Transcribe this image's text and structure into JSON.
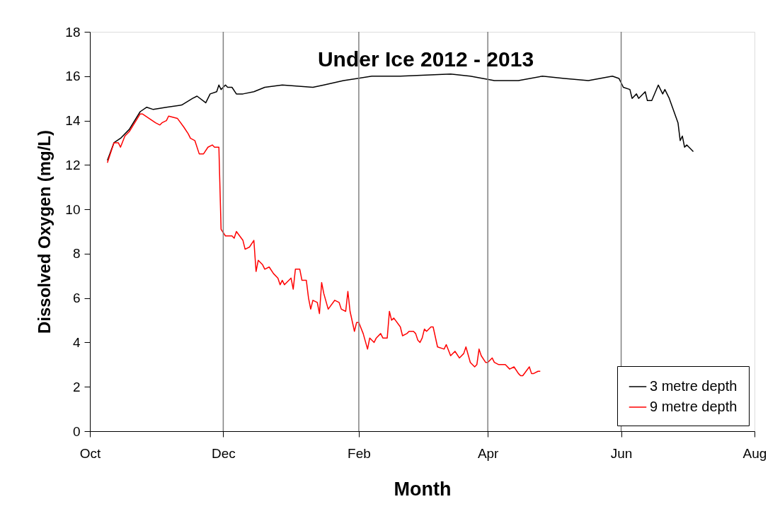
{
  "chart_data": {
    "type": "line",
    "title": "Under Ice 2012 - 2013",
    "xlabel": "Month",
    "ylabel": "Dissolved Oxygen (mg/L)",
    "xlim": [
      "2012-10-01",
      "2013-08-01"
    ],
    "xticks": [
      {
        "value": "2012-10-01",
        "label": "Oct"
      },
      {
        "value": "2012-12-01",
        "label": "Dec"
      },
      {
        "value": "2013-02-01",
        "label": "Feb"
      },
      {
        "value": "2013-04-01",
        "label": "Apr"
      },
      {
        "value": "2013-06-01",
        "label": "Jun"
      },
      {
        "value": "2013-08-01",
        "label": "Aug"
      }
    ],
    "ylim": [
      0,
      18
    ],
    "yticks": [
      0,
      2,
      4,
      6,
      8,
      10,
      12,
      14,
      16,
      18
    ],
    "grid": "x",
    "legend": "bottom right",
    "line_style": "solid",
    "marker": "none",
    "series": [
      {
        "name": "3 metre depth",
        "color": "#000000",
        "x": [
          "2012-10-09",
          "2012-10-12",
          "2012-10-15",
          "2012-10-19",
          "2012-10-24",
          "2012-10-27",
          "2012-10-30",
          "2012-11-05",
          "2012-11-12",
          "2012-11-17",
          "2012-11-19",
          "2012-11-23",
          "2012-11-25",
          "2012-11-28",
          "2012-11-29",
          "2012-11-30",
          "2012-12-02",
          "2012-12-03",
          "2012-12-05",
          "2012-12-07",
          "2012-12-10",
          "2012-12-15",
          "2012-12-20",
          "2012-12-28",
          "2013-01-11",
          "2013-01-16",
          "2013-01-25",
          "2013-02-07",
          "2013-02-20",
          "2013-03-15",
          "2013-03-24",
          "2013-04-04",
          "2013-04-15",
          "2013-04-26",
          "2013-05-06",
          "2013-05-17",
          "2013-05-28",
          "2013-05-31",
          "2013-06-02",
          "2013-06-05",
          "2013-06-06",
          "2013-06-08",
          "2013-06-09",
          "2013-06-12",
          "2013-06-13",
          "2013-06-15",
          "2013-06-18",
          "2013-06-20",
          "2013-06-21",
          "2013-06-23",
          "2013-06-27",
          "2013-06-28",
          "2013-06-29",
          "2013-06-30",
          "2013-07-01",
          "2013-07-04"
        ],
        "values": [
          12.2,
          13.0,
          13.2,
          13.6,
          14.4,
          14.6,
          14.5,
          14.6,
          14.7,
          15.0,
          15.1,
          14.8,
          15.2,
          15.3,
          15.6,
          15.4,
          15.6,
          15.5,
          15.5,
          15.2,
          15.2,
          15.3,
          15.5,
          15.6,
          15.5,
          15.6,
          15.8,
          16.0,
          16.0,
          16.1,
          16.0,
          15.8,
          15.8,
          16.0,
          15.9,
          15.8,
          16.0,
          15.9,
          15.5,
          15.4,
          15.0,
          15.2,
          15.0,
          15.3,
          14.9,
          14.9,
          15.6,
          15.2,
          15.4,
          15.0,
          13.9,
          13.1,
          13.3,
          12.8,
          12.9,
          12.6
        ]
      },
      {
        "name": "9 metre depth",
        "color": "#ff0000",
        "x": [
          "2012-10-09",
          "2012-10-12",
          "2012-10-14",
          "2012-10-15",
          "2012-10-17",
          "2012-10-19",
          "2012-10-24",
          "2012-10-25",
          "2012-10-28",
          "2012-10-31",
          "2012-11-02",
          "2012-11-03",
          "2012-11-05",
          "2012-11-06",
          "2012-11-10",
          "2012-11-13",
          "2012-11-15",
          "2012-11-16",
          "2012-11-18",
          "2012-11-20",
          "2012-11-22",
          "2012-11-24",
          "2012-11-26",
          "2012-11-27",
          "2012-11-29",
          "2012-11-30",
          "2012-12-02",
          "2012-12-05",
          "2012-12-06",
          "2012-12-07",
          "2012-12-10",
          "2012-12-11",
          "2012-12-13",
          "2012-12-15",
          "2012-12-16",
          "2012-12-17",
          "2012-12-19",
          "2012-12-20",
          "2012-12-22",
          "2012-12-24",
          "2012-12-26",
          "2012-12-27",
          "2012-12-28",
          "2012-12-29",
          "2013-01-01",
          "2013-01-02",
          "2013-01-03",
          "2013-01-05",
          "2013-01-06",
          "2013-01-08",
          "2013-01-09",
          "2013-01-10",
          "2013-01-11",
          "2013-01-13",
          "2013-01-14",
          "2013-01-15",
          "2013-01-16",
          "2013-01-18",
          "2013-01-21",
          "2013-01-23",
          "2013-01-24",
          "2013-01-26",
          "2013-01-27",
          "2013-01-28",
          "2013-01-30",
          "2013-01-31",
          "2013-02-01",
          "2013-02-03",
          "2013-02-05",
          "2013-02-06",
          "2013-02-08",
          "2013-02-09",
          "2013-02-11",
          "2013-02-12",
          "2013-02-14",
          "2013-02-15",
          "2013-02-16",
          "2013-02-17",
          "2013-02-20",
          "2013-02-21",
          "2013-02-23",
          "2013-02-24",
          "2013-02-26",
          "2013-02-27",
          "2013-02-28",
          "2013-03-01",
          "2013-03-02",
          "2013-03-03",
          "2013-03-04",
          "2013-03-06",
          "2013-03-07",
          "2013-03-09",
          "2013-03-12",
          "2013-03-13",
          "2013-03-15",
          "2013-03-17",
          "2013-03-19",
          "2013-03-21",
          "2013-03-22",
          "2013-03-24",
          "2013-03-26",
          "2013-03-27",
          "2013-03-28",
          "2013-03-29",
          "2013-03-31",
          "2013-04-01",
          "2013-04-03",
          "2013-04-04",
          "2013-04-06",
          "2013-04-07",
          "2013-04-09",
          "2013-04-11",
          "2013-04-13",
          "2013-04-15",
          "2013-04-16",
          "2013-04-17",
          "2013-04-20",
          "2013-04-21",
          "2013-04-22",
          "2013-04-24",
          "2013-04-25"
        ],
        "values": [
          12.1,
          13.0,
          13.0,
          12.8,
          13.3,
          13.5,
          14.3,
          14.3,
          14.1,
          13.9,
          13.8,
          13.9,
          14.0,
          14.2,
          14.1,
          13.7,
          13.4,
          13.2,
          13.1,
          12.5,
          12.5,
          12.8,
          12.9,
          12.8,
          12.8,
          9.1,
          8.8,
          8.8,
          8.7,
          9.0,
          8.6,
          8.2,
          8.3,
          8.6,
          7.2,
          7.7,
          7.5,
          7.3,
          7.4,
          7.1,
          6.9,
          6.6,
          6.8,
          6.6,
          6.9,
          6.4,
          7.3,
          7.3,
          6.8,
          6.8,
          6.0,
          5.5,
          5.9,
          5.8,
          5.3,
          6.7,
          6.2,
          5.5,
          5.9,
          5.8,
          5.5,
          5.4,
          6.3,
          5.4,
          4.5,
          4.9,
          4.9,
          4.4,
          3.7,
          4.2,
          4.0,
          4.2,
          4.4,
          4.2,
          4.2,
          5.4,
          5.0,
          5.1,
          4.7,
          4.3,
          4.4,
          4.5,
          4.5,
          4.4,
          4.1,
          4.0,
          4.2,
          4.6,
          4.5,
          4.7,
          4.7,
          3.8,
          3.7,
          3.9,
          3.4,
          3.6,
          3.3,
          3.5,
          3.8,
          3.1,
          2.9,
          3.0,
          3.7,
          3.4,
          3.1,
          3.1,
          3.3,
          3.1,
          3.0,
          3.0,
          3.0,
          2.8,
          2.9,
          2.6,
          2.5,
          2.5,
          2.9,
          2.6,
          2.6,
          2.7,
          2.7
        ]
      }
    ]
  }
}
